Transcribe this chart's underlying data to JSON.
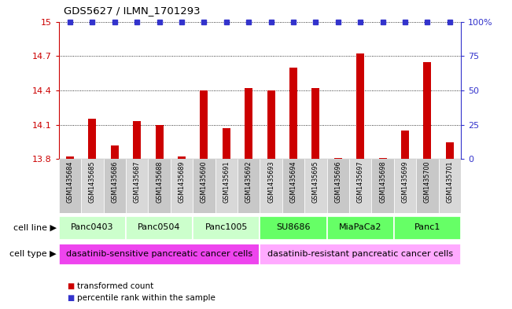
{
  "title": "GDS5627 / ILMN_1701293",
  "samples": [
    "GSM1435684",
    "GSM1435685",
    "GSM1435686",
    "GSM1435687",
    "GSM1435688",
    "GSM1435689",
    "GSM1435690",
    "GSM1435691",
    "GSM1435692",
    "GSM1435693",
    "GSM1435694",
    "GSM1435695",
    "GSM1435696",
    "GSM1435697",
    "GSM1435698",
    "GSM1435699",
    "GSM1435700",
    "GSM1435701"
  ],
  "bar_values": [
    13.82,
    14.15,
    13.92,
    14.13,
    14.1,
    13.82,
    14.4,
    14.07,
    14.42,
    14.4,
    14.6,
    14.42,
    13.81,
    14.72,
    13.81,
    14.05,
    14.65,
    13.95
  ],
  "bar_color": "#cc0000",
  "percentile_color": "#3333cc",
  "ylim_left": [
    13.8,
    15.0
  ],
  "yticks_left": [
    13.8,
    14.1,
    14.4,
    14.7,
    15.0
  ],
  "ytick_labels_left": [
    "13.8",
    "14.1",
    "14.4",
    "14.7",
    "15"
  ],
  "ylim_right": [
    0,
    100
  ],
  "yticks_right": [
    0,
    25,
    50,
    75,
    100
  ],
  "ytick_labels_right": [
    "0",
    "25",
    "50",
    "75",
    "100%"
  ],
  "cell_line_groups": [
    {
      "label": "Panc0403",
      "start": 0,
      "end": 2,
      "color": "#ccffcc"
    },
    {
      "label": "Panc0504",
      "start": 3,
      "end": 5,
      "color": "#ccffcc"
    },
    {
      "label": "Panc1005",
      "start": 6,
      "end": 8,
      "color": "#ccffcc"
    },
    {
      "label": "SU8686",
      "start": 9,
      "end": 11,
      "color": "#66ff66"
    },
    {
      "label": "MiaPaCa2",
      "start": 12,
      "end": 14,
      "color": "#66ff66"
    },
    {
      "label": "Panc1",
      "start": 15,
      "end": 17,
      "color": "#66ff66"
    }
  ],
  "cell_type_groups": [
    {
      "label": "dasatinib-sensitive pancreatic cancer cells",
      "start": 0,
      "end": 8,
      "color": "#ee44ee"
    },
    {
      "label": "dasatinib-resistant pancreatic cancer cells",
      "start": 9,
      "end": 17,
      "color": "#ffaaff"
    }
  ],
  "legend_items": [
    {
      "label": "transformed count",
      "color": "#cc0000"
    },
    {
      "label": "percentile rank within the sample",
      "color": "#3333cc"
    }
  ],
  "background_color": "#ffffff",
  "bar_width": 0.35,
  "cell_line_label": "cell line",
  "cell_type_label": "cell type"
}
